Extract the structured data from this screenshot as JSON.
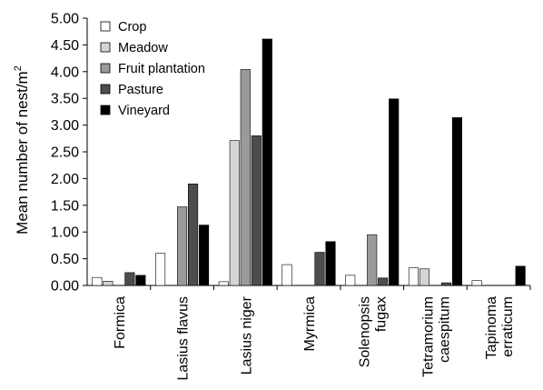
{
  "chart_data": {
    "type": "bar",
    "title": "",
    "xlabel": "",
    "ylabel": "Mean number of nest/m²",
    "ylabel_base": "Mean number of nest/m",
    "ylabel_sup": "2",
    "ylim": [
      0,
      5
    ],
    "yticks": [
      "0.00",
      "0.50",
      "1.00",
      "1.50",
      "2.00",
      "2.50",
      "3.00",
      "3.50",
      "4.00",
      "4.50",
      "5.00"
    ],
    "grid": false,
    "legend_position": "top-left",
    "categories": [
      [
        "Formica"
      ],
      [
        "Lasius flavus"
      ],
      [
        "Lasius niger"
      ],
      [
        "Myrmica"
      ],
      [
        "Solenopsis",
        "fugax"
      ],
      [
        "Tetramorium",
        "caespitum"
      ],
      [
        "Tapinoma",
        "erraticum"
      ]
    ],
    "series": [
      {
        "name": "Crop",
        "color": "#ffffff",
        "values": [
          0.15,
          0.6,
          0.07,
          0.39,
          0.19,
          0.33,
          0.09
        ]
      },
      {
        "name": "Meadow",
        "color": "#d4d4d4",
        "values": [
          0.08,
          0.0,
          2.71,
          0.0,
          0.0,
          0.31,
          0.0
        ]
      },
      {
        "name": "Fruit plantation",
        "color": "#9a9a9a",
        "values": [
          0.0,
          1.47,
          4.04,
          0.0,
          0.95,
          0.0,
          0.0
        ]
      },
      {
        "name": "Pasture",
        "color": "#4d4d4d",
        "values": [
          0.24,
          1.9,
          2.8,
          0.62,
          0.14,
          0.05,
          0.0
        ]
      },
      {
        "name": "Vineyard",
        "color": "#000000",
        "values": [
          0.19,
          1.13,
          4.61,
          0.82,
          3.49,
          3.14,
          0.36
        ]
      }
    ]
  }
}
